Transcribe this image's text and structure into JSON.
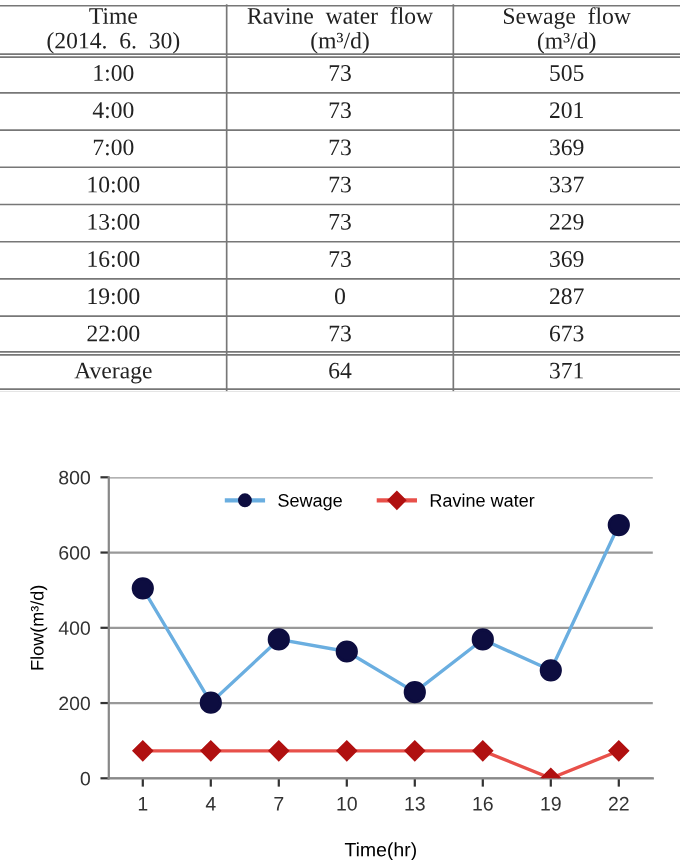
{
  "chart_data": [
    {
      "type": "heatmap",
      "ylabel": "Time\n(2014.  6.  30)",
      "categories": [
        "Ravine  water  flow\n(m³/d)",
        "Sewage  flow\n(m³/d)"
      ],
      "y_categories": [
        "1:00",
        "4:00",
        "7:00",
        "10:00",
        "13:00",
        "16:00",
        "19:00",
        "22:00",
        "Average"
      ],
      "cells": [
        [
          73,
          505
        ],
        [
          73,
          201
        ],
        [
          73,
          369
        ],
        [
          73,
          337
        ],
        [
          73,
          229
        ],
        [
          73,
          369
        ],
        [
          0,
          287
        ],
        [
          73,
          673
        ],
        [
          64,
          371
        ]
      ],
      "data_labels": true
    },
    {
      "type": "line",
      "xlabel": "Time(hr)",
      "ylabel": "Flow(m³/d)",
      "categories": [
        "1",
        "4",
        "7",
        "10",
        "13",
        "16",
        "19",
        "22"
      ],
      "series": [
        {
          "name": "Sewage",
          "color": "#6aaee0",
          "marker": "circle",
          "values": [
            505,
            201,
            369,
            337,
            229,
            369,
            287,
            673
          ]
        },
        {
          "name": "Ravine water",
          "color": "#e8504a",
          "marker": "diamond",
          "values": [
            73,
            73,
            73,
            73,
            73,
            73,
            0,
            73
          ]
        }
      ],
      "ylim": [
        0,
        800
      ],
      "yticks": [
        0,
        200,
        400,
        600,
        800
      ],
      "grid": "y",
      "legend": "top"
    }
  ]
}
